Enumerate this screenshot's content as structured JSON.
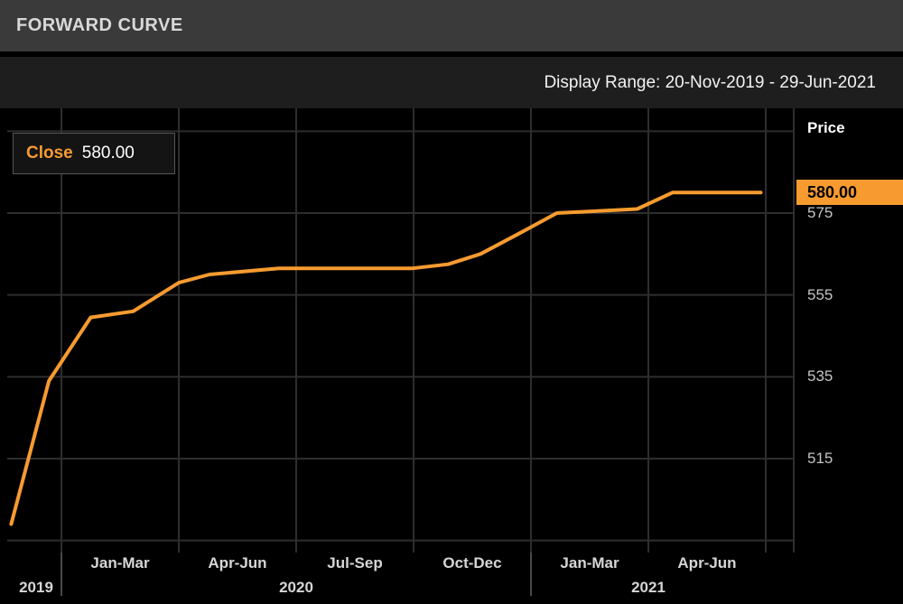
{
  "window": {
    "title": "FORWARD CURVE"
  },
  "rangebar": {
    "display_range": "Display Range: 20-Nov-2019 - 29-Jun-2021"
  },
  "legend": {
    "label": "Close",
    "value": "580.00"
  },
  "y_axis": {
    "title": "Price",
    "badge": "580.00",
    "ticks": [
      {
        "label": "575",
        "value": 575
      },
      {
        "label": "555",
        "value": 555
      },
      {
        "label": "535",
        "value": 535
      },
      {
        "label": "515",
        "value": 515
      }
    ]
  },
  "x_axis": {
    "quarters": [
      "Jan-Mar",
      "Apr-Jun",
      "Jul-Sep",
      "Oct-Dec",
      "Jan-Mar",
      "Apr-Jun"
    ],
    "years": [
      "2019",
      "2020",
      "2021"
    ]
  },
  "colors": {
    "accent": "#f79b30",
    "grid": "#2e2e2e",
    "background": "#000000"
  },
  "chart_data": {
    "type": "line",
    "title": "FORWARD CURVE",
    "ylabel": "Price",
    "x_range": [
      "20-Nov-2019",
      "29-Jun-2021"
    ],
    "ylim": [
      492,
      600
    ],
    "yticks": [
      515,
      535,
      555,
      575
    ],
    "grid": true,
    "legend_position": "top-left",
    "close_value": 580.0,
    "series": [
      {
        "name": "Close",
        "color": "#f79b30",
        "points": [
          [
            0.005,
            499
          ],
          [
            0.053,
            534
          ],
          [
            0.106,
            549.5
          ],
          [
            0.16,
            551
          ],
          [
            0.218,
            558
          ],
          [
            0.257,
            560
          ],
          [
            0.345,
            561.5
          ],
          [
            0.515,
            561.5
          ],
          [
            0.56,
            562.5
          ],
          [
            0.601,
            565
          ],
          [
            0.65,
            570
          ],
          [
            0.698,
            575
          ],
          [
            0.8,
            576
          ],
          [
            0.845,
            580
          ],
          [
            0.957,
            580
          ]
        ]
      }
    ]
  }
}
